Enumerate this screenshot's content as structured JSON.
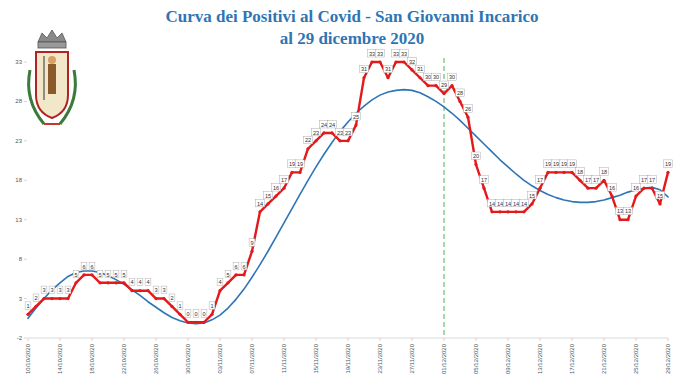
{
  "chart_data": {
    "type": "line",
    "title": "Curva dei Positivi al Covid - San Giovanni Incarico",
    "subtitle": "al 29 dicembre 2020",
    "categories": [
      "10/10/2020",
      null,
      null,
      null,
      "14/10/2020",
      null,
      null,
      null,
      "18/10/2020",
      null,
      null,
      null,
      "22/10/2020",
      null,
      null,
      null,
      "26/10/2020",
      null,
      null,
      null,
      "30/10/2020",
      null,
      null,
      null,
      "03/11/2020",
      null,
      null,
      null,
      "07/11/2020",
      null,
      null,
      null,
      "11/11/2020",
      null,
      null,
      null,
      "15/11/2020",
      null,
      null,
      null,
      "19/11/2020",
      null,
      null,
      null,
      "23/11/2020",
      null,
      null,
      null,
      "27/11/2020",
      null,
      null,
      null,
      "01/12/2020",
      null,
      null,
      null,
      "05/12/2020",
      null,
      null,
      null,
      "09/12/2020",
      null,
      null,
      null,
      "13/12/2020",
      null,
      null,
      null,
      "17/12/2020",
      null,
      null,
      null,
      "21/12/2020",
      null,
      null,
      null,
      "25/12/2020",
      null,
      null,
      null,
      "29/12/2020"
    ],
    "series": [
      {
        "color": "#e3191b",
        "marker": "circle",
        "line_style": "solid",
        "data_labels": true,
        "values": [
          1,
          2,
          3,
          3,
          3,
          3,
          5,
          6,
          6,
          5,
          5,
          5,
          5,
          4,
          4,
          4,
          3,
          3,
          2,
          1,
          0,
          0,
          0,
          1,
          4,
          5,
          6,
          6,
          9,
          14,
          15,
          16,
          17,
          19,
          19,
          22,
          23,
          24,
          24,
          23,
          23,
          25,
          31,
          33,
          33,
          31,
          33,
          33,
          32,
          31,
          30,
          30,
          29,
          30,
          28,
          26,
          20,
          17,
          14,
          14,
          14,
          14,
          14,
          15,
          17,
          19,
          19,
          19,
          19,
          18,
          17,
          17,
          18,
          16,
          13,
          13,
          16,
          17,
          17,
          15,
          19
        ]
      },
      {
        "color": "#2e75b6",
        "marker": "none",
        "line_style": "smooth",
        "data_labels": false,
        "values": [
          0.5,
          1.8,
          3.0,
          4.1,
          5.0,
          5.8,
          6.3,
          6.5,
          6.5,
          6.3,
          5.9,
          5.4,
          4.8,
          4.1,
          3.4,
          2.6,
          1.9,
          1.2,
          0.6,
          0.2,
          -0.1,
          -0.2,
          -0.1,
          0.3,
          0.9,
          1.8,
          2.9,
          4.2,
          5.7,
          7.3,
          9.0,
          10.8,
          12.6,
          14.4,
          16.2,
          18.0,
          19.7,
          21.3,
          22.8,
          24.2,
          25.4,
          26.5,
          27.4,
          28.2,
          28.8,
          29.2,
          29.4,
          29.5,
          29.4,
          29.1,
          28.6,
          28.0,
          27.3,
          26.5,
          25.6,
          24.6,
          23.6,
          22.6,
          21.6,
          20.6,
          19.7,
          18.8,
          18.0,
          17.3,
          16.7,
          16.2,
          15.8,
          15.5,
          15.3,
          15.2,
          15.2,
          15.3,
          15.5,
          15.8,
          16.1,
          16.5,
          16.8,
          17.0,
          17.1,
          16.8,
          15.9
        ]
      }
    ],
    "reference_line": {
      "x": "01/12/2020",
      "color": "#6dbf73",
      "line_style": "dashed"
    },
    "ylim": [
      -2,
      33
    ],
    "yticks": [
      -2,
      3,
      8,
      13,
      18,
      23,
      28,
      33
    ],
    "grid": false
  }
}
